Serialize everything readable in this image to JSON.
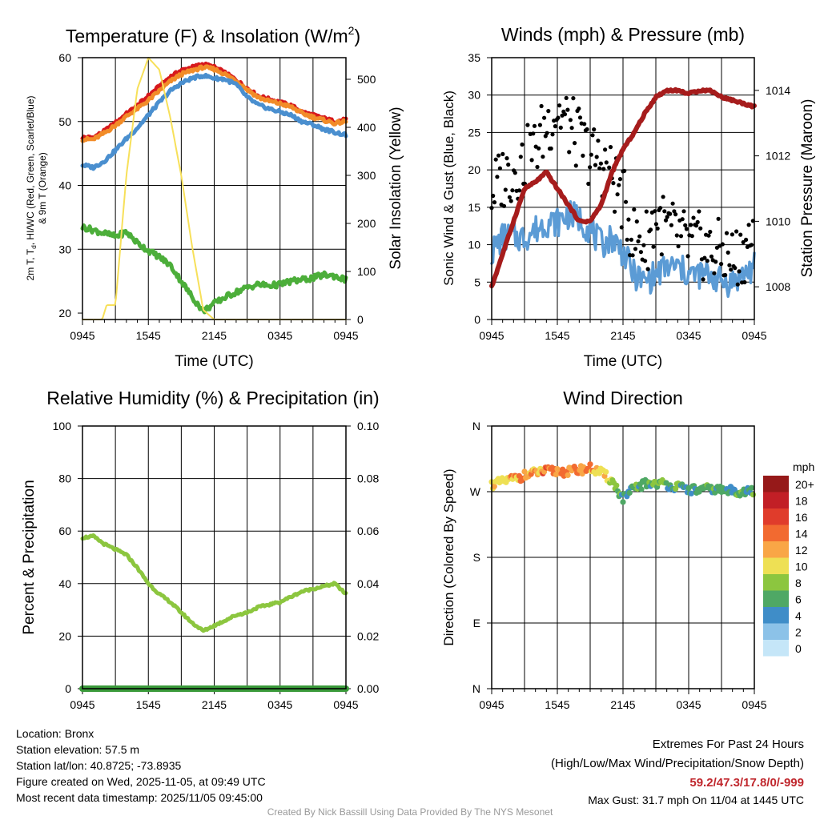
{
  "meta": {
    "location": "Location: Bronx",
    "elevation": "Station elevation: 57.5 m",
    "latlon": "Station lat/lon: 40.8725; -73.8935",
    "created": "Figure created on Wed, 2025-11-05, at 09:49 UTC",
    "recent": "Most recent data timestamp: 2025/11/05 09:45:00",
    "extremes_title": "Extremes For Past 24 Hours",
    "extremes_legend": "(High/Low/Max Wind/Precipitation/Snow Depth)",
    "extremes_values": "59.2/47.3/17.8/0/-999",
    "max_gust": "Max Gust: 31.7 mph On 11/04 at 1445 UTC",
    "credit": "Created By Nick Bassill Using Data Provided By The NYS Mesonet",
    "extremes_color": "#c0272d"
  },
  "colors": {
    "red": "#d7191c",
    "orange": "#f28c28",
    "scarlet_blue": "#4a8fcf",
    "green": "#4cae3a",
    "solar": "#f7e05a",
    "wind": "#5b9bd5",
    "gust": "#000000",
    "pressure": "#a61c1c",
    "rh": "#8cc63f",
    "precip": "#3a9a3a"
  },
  "chart_data": [
    {
      "id": "temp",
      "type": "line",
      "title": "Temperature (F) & Insolation (W/m",
      "title_sup": "2",
      "title_end": ")",
      "xlabel": "Time (UTC)",
      "ylabel_line1": "2m T, T",
      "ylabel_sub": "d",
      "ylabel_line1b": ", HI/WC (Red, Green, Scarlet/Blue)",
      "ylabel_line2": "& 9m T (Orange)",
      "ylabel_right": "Solar Insolation (Yellow)",
      "x_ticks": [
        "0945",
        "1545",
        "2145",
        "0345",
        "0945"
      ],
      "ylim": [
        19,
        60
      ],
      "y_ticks": [
        "20",
        "30",
        "40",
        "50",
        "60"
      ],
      "y_tick_values": [
        20,
        30,
        40,
        50,
        60
      ],
      "ylim_right": [
        0,
        545
      ],
      "y2_ticks": [
        "0",
        "100",
        "200",
        "300",
        "400",
        "500"
      ],
      "y2_tick_values": [
        0,
        100,
        200,
        300,
        400,
        500
      ],
      "series": [
        {
          "name": "2m T",
          "color_key": "red",
          "axis": "left",
          "x": [
            0,
            1,
            2,
            3,
            4,
            5,
            6,
            7,
            8,
            9,
            10,
            11,
            12,
            13,
            14,
            15,
            16,
            17,
            18,
            19,
            20,
            21,
            22,
            23,
            24
          ],
          "values": [
            47.5,
            47.5,
            48.5,
            49.8,
            51.2,
            52.5,
            54,
            55.5,
            57,
            58,
            58.5,
            59,
            58.5,
            57.6,
            56.5,
            55.2,
            54,
            53.5,
            53,
            52.5,
            51.5,
            51,
            50.5,
            50,
            50.3
          ]
        },
        {
          "name": "9m T",
          "color_key": "orange",
          "axis": "left",
          "x": [
            0,
            1,
            2,
            3,
            4,
            5,
            6,
            7,
            8,
            9,
            10,
            11,
            12,
            13,
            14,
            15,
            16,
            17,
            18,
            19,
            20,
            21,
            22,
            23,
            24
          ],
          "values": [
            47.2,
            47.2,
            48.2,
            49.4,
            50.8,
            52,
            53.3,
            54.8,
            56.3,
            57.4,
            58,
            58.5,
            58.2,
            57.4,
            56.4,
            55,
            53.8,
            53.2,
            52.8,
            52.3,
            51.3,
            50.7,
            50.2,
            49.7,
            50
          ]
        },
        {
          "name": "Scarlet/Blue",
          "color_key": "scarlet_blue",
          "axis": "left",
          "x": [
            0,
            1,
            2,
            3,
            4,
            5,
            6,
            7,
            8,
            9,
            10,
            11,
            12,
            13,
            14,
            15,
            16,
            17,
            18,
            19,
            20,
            21,
            22,
            23,
            24
          ],
          "values": [
            43.2,
            42.8,
            43.8,
            45.5,
            47.3,
            49,
            51,
            53,
            54.8,
            56,
            56.8,
            57.2,
            56.8,
            56.6,
            55.8,
            53.8,
            52.6,
            52,
            51.5,
            51,
            50,
            49.5,
            48.8,
            48.3,
            47.9
          ]
        },
        {
          "name": "Td",
          "color_key": "green",
          "axis": "left",
          "x": [
            0,
            1,
            2,
            3,
            4,
            5,
            6,
            7,
            8,
            9,
            10,
            11,
            12,
            13,
            14,
            15,
            16,
            17,
            18,
            19,
            20,
            21,
            22,
            23,
            24
          ],
          "values": [
            33.5,
            33,
            32.5,
            32,
            32.7,
            31,
            29.8,
            28.8,
            27.5,
            25,
            22.5,
            20.3,
            21.5,
            22.5,
            23.3,
            24,
            24.5,
            24.3,
            24.5,
            25,
            25.2,
            25.5,
            26,
            25.8,
            25.2
          ]
        },
        {
          "name": "Solar",
          "color_key": "solar",
          "axis": "right",
          "x": [
            0,
            1,
            1.8,
            2.2,
            3,
            4,
            5,
            6,
            7,
            8,
            9,
            10,
            11,
            12,
            13,
            14,
            24
          ],
          "values": [
            0,
            0,
            0,
            30,
            30,
            300,
            480,
            545,
            520,
            420,
            300,
            150,
            20,
            0,
            0,
            0,
            0
          ]
        }
      ]
    },
    {
      "id": "wind",
      "type": "line",
      "title": "Winds (mph) & Pressure (mb)",
      "xlabel": "Time (UTC)",
      "ylabel": "Sonic Wind & Gust (Blue, Black)",
      "ylabel_right": "Station Pressure (Maroon)",
      "x_ticks": [
        "0945",
        "1545",
        "2145",
        "0345",
        "0945"
      ],
      "ylim": [
        0,
        35
      ],
      "y_ticks": [
        "0",
        "5",
        "10",
        "15",
        "20",
        "25",
        "30",
        "35"
      ],
      "y_tick_values": [
        0,
        5,
        10,
        15,
        20,
        25,
        30,
        35
      ],
      "ylim_right": [
        1007,
        1015
      ],
      "y2_ticks": [
        "1008",
        "1010",
        "1012",
        "1014"
      ],
      "y2_tick_values": [
        1008,
        1010,
        1012,
        1014
      ],
      "series": [
        {
          "name": "Sonic Wind",
          "color_key": "wind",
          "axis": "left",
          "x": [
            0,
            1,
            2,
            3,
            4,
            5,
            6,
            7,
            8,
            9,
            10,
            11,
            12,
            13,
            14,
            15,
            16,
            17,
            18,
            19,
            20,
            21,
            22,
            23,
            24
          ],
          "values": [
            9,
            11,
            11,
            11,
            12,
            13,
            13,
            14,
            13.5,
            12,
            10,
            11,
            9,
            6,
            5,
            6,
            7,
            7,
            6,
            6,
            6,
            5,
            5,
            6,
            7
          ]
        },
        {
          "name": "Gust",
          "color_key": "gust",
          "axis": "left",
          "x": [
            0,
            1,
            2,
            3,
            4,
            5,
            6,
            7,
            8,
            9,
            10,
            11,
            12,
            13,
            14,
            15,
            16,
            17,
            18,
            19,
            20,
            21,
            22,
            23,
            24
          ],
          "values": [
            17,
            19,
            20,
            21,
            23,
            26,
            28,
            26,
            24,
            22,
            21,
            19,
            16,
            11,
            10,
            14,
            12,
            11,
            10,
            10,
            9,
            9,
            8,
            9,
            12
          ]
        },
        {
          "name": "Pressure",
          "color_key": "pressure",
          "axis": "right",
          "x": [
            0,
            1,
            2,
            3,
            4,
            5,
            6,
            7,
            8,
            9,
            10,
            11,
            12,
            13,
            14,
            15,
            16,
            17,
            18,
            19,
            20,
            21,
            22,
            23,
            24
          ],
          "values": [
            1008,
            1009,
            1010,
            1011,
            1011.2,
            1011.5,
            1011,
            1010.5,
            1010,
            1010,
            1010.5,
            1011.5,
            1012.2,
            1012.7,
            1013.3,
            1013.8,
            1014,
            1014,
            1013.9,
            1014,
            1014,
            1013.8,
            1013.7,
            1013.6,
            1013.5
          ]
        }
      ]
    },
    {
      "id": "rh",
      "type": "line",
      "title": "Relative Humidity (%) & Precipitation (in)",
      "ylabel": "Percent & Precipitation",
      "x_ticks": [
        "0945",
        "1545",
        "2145",
        "0345",
        "0945"
      ],
      "ylim": [
        0,
        100
      ],
      "y_ticks": [
        "0",
        "20",
        "40",
        "60",
        "80",
        "100"
      ],
      "y_tick_values": [
        0,
        20,
        40,
        60,
        80,
        100
      ],
      "ylim_right": [
        0,
        0.1
      ],
      "y2_ticks": [
        "0.00",
        "0.02",
        "0.04",
        "0.06",
        "0.08",
        "0.10"
      ],
      "y2_tick_values": [
        0,
        0.02,
        0.04,
        0.06,
        0.08,
        0.1
      ],
      "series": [
        {
          "name": "RH",
          "color_key": "rh",
          "axis": "left",
          "x": [
            0,
            1,
            2,
            3,
            4,
            5,
            6,
            7,
            8,
            9,
            10,
            11,
            12,
            13,
            14,
            15,
            16,
            17,
            18,
            19,
            20,
            21,
            22,
            23,
            24
          ],
          "values": [
            57.5,
            58,
            55,
            53,
            51,
            46,
            40,
            36,
            33,
            29,
            25,
            22,
            24,
            26,
            28,
            29,
            31,
            32,
            33,
            35,
            37,
            38,
            39,
            40,
            36
          ]
        },
        {
          "name": "Precip",
          "color_key": "precip",
          "axis": "right",
          "x": [
            0,
            24
          ],
          "values": [
            0,
            0
          ]
        }
      ]
    },
    {
      "id": "dir",
      "type": "scatter",
      "title": "Wind Direction",
      "ylabel": "Direction (Colored By Speed)",
      "x_ticks": [
        "0945",
        "1545",
        "2145",
        "0345",
        "0945"
      ],
      "ylim": [
        0,
        360
      ],
      "y_ticks": [
        "N",
        "E",
        "S",
        "W",
        "N"
      ],
      "y_tick_values": [
        0,
        90,
        180,
        270,
        360
      ],
      "legend_title": "mph",
      "legend_labels": [
        "20+",
        "18",
        "16",
        "14",
        "12",
        "10",
        "8",
        "6",
        "4",
        "2",
        "0"
      ],
      "legend_colors": [
        "#961919",
        "#c21f26",
        "#e03c2b",
        "#f26a30",
        "#f9a646",
        "#eee054",
        "#8cc63f",
        "#4fa865",
        "#3f8dc8",
        "#8cc2e8",
        "#c5e6f8"
      ],
      "x": [
        0,
        1,
        2,
        3,
        4,
        5,
        6,
        7,
        8,
        9,
        10,
        11,
        12,
        13,
        14,
        15,
        16,
        17,
        18,
        19,
        20,
        21,
        22,
        23,
        24
      ],
      "values": [
        280,
        283,
        288,
        292,
        296,
        298,
        298,
        297,
        300,
        302,
        296,
        285,
        260,
        274,
        281,
        282,
        280,
        276,
        273,
        272,
        274,
        272,
        271,
        270,
        270
      ],
      "speed": [
        10,
        11,
        12,
        13,
        12,
        14,
        13,
        12,
        13,
        12,
        11,
        9,
        5,
        5,
        6,
        7,
        6,
        6,
        5,
        5,
        6,
        5,
        5,
        6,
        6
      ]
    }
  ]
}
